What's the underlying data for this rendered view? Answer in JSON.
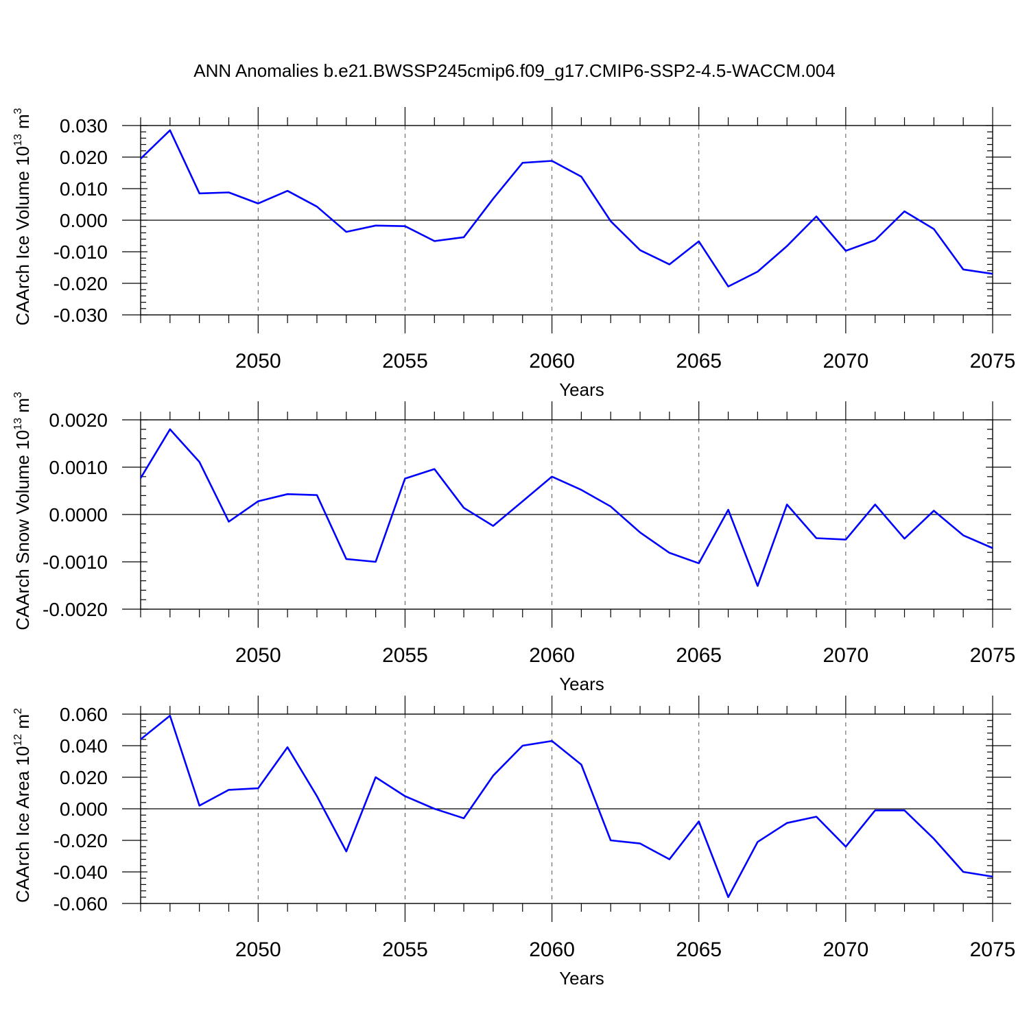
{
  "title": "ANN Anomalies b.e21.BWSSP245cmip6.f09_g17.CMIP6-SSP2-4.5-WACCM.004",
  "line_color": "#0000ff",
  "chart_data": [
    {
      "type": "line",
      "ylabel": "CAArch Ice Volume 10",
      "ylabel_exp": "13",
      "ylabel_unit": " m",
      "ylabel_unit_exp": "3",
      "xlabel": "Years",
      "xlim": [
        2046,
        2075
      ],
      "ylim": [
        -0.03,
        0.03
      ],
      "xticks": [
        2050,
        2055,
        2060,
        2065,
        2070,
        2075
      ],
      "yticks": [
        -0.03,
        -0.02,
        -0.01,
        0.0,
        0.01,
        0.02,
        0.03
      ],
      "ytick_labels": [
        "-0.030",
        "-0.020",
        "-0.010",
        "0.000",
        "0.010",
        "0.020",
        "0.030"
      ],
      "grid_x": true,
      "x": [
        2046,
        2047,
        2048,
        2049,
        2050,
        2051,
        2052,
        2053,
        2054,
        2055,
        2056,
        2057,
        2058,
        2059,
        2060,
        2061,
        2062,
        2063,
        2064,
        2065,
        2066,
        2067,
        2068,
        2069,
        2070,
        2071,
        2072,
        2073,
        2074,
        2075
      ],
      "y": [
        0.0195,
        0.0285,
        0.0085,
        0.0088,
        0.0053,
        0.0093,
        0.0043,
        -0.0037,
        -0.0017,
        -0.0019,
        -0.0066,
        -0.0054,
        0.0068,
        0.0182,
        0.0188,
        0.0138,
        -0.0003,
        -0.0095,
        -0.014,
        -0.0067,
        -0.021,
        -0.0163,
        -0.0082,
        0.0012,
        -0.0097,
        -0.0063,
        0.0028,
        -0.0028,
        -0.0156,
        -0.017
      ]
    },
    {
      "type": "line",
      "ylabel": "CAArch Snow Volume 10",
      "ylabel_exp": "13",
      "ylabel_unit": " m",
      "ylabel_unit_exp": "3",
      "xlabel": "Years",
      "xlim": [
        2046,
        2075
      ],
      "ylim": [
        -0.002,
        0.002
      ],
      "xticks": [
        2050,
        2055,
        2060,
        2065,
        2070,
        2075
      ],
      "yticks": [
        -0.002,
        -0.001,
        0.0,
        0.001,
        0.002
      ],
      "ytick_labels": [
        "-0.0020",
        "-0.0010",
        "0.0000",
        "0.0010",
        "0.0020"
      ],
      "grid_x": true,
      "x": [
        2046,
        2047,
        2048,
        2049,
        2050,
        2051,
        2052,
        2053,
        2054,
        2055,
        2056,
        2057,
        2058,
        2059,
        2060,
        2061,
        2062,
        2063,
        2064,
        2065,
        2066,
        2067,
        2068,
        2069,
        2070,
        2071,
        2072,
        2073,
        2074,
        2075
      ],
      "y": [
        0.00077,
        0.0018,
        0.00111,
        -0.00015,
        0.00028,
        0.00043,
        0.00041,
        -0.00094,
        -0.001,
        0.00076,
        0.00096,
        0.00014,
        -0.00024,
        0.00028,
        0.0008,
        0.00052,
        0.00017,
        -0.00038,
        -0.00081,
        -0.00103,
        0.0001,
        -0.00151,
        0.00021,
        -0.0005,
        -0.00053,
        0.00021,
        -0.00051,
        8e-05,
        -0.00044,
        -0.00071
      ]
    },
    {
      "type": "line",
      "ylabel": "CAArch Ice Area 10",
      "ylabel_exp": "12",
      "ylabel_unit": " m",
      "ylabel_unit_exp": "2",
      "xlabel": "Years",
      "xlim": [
        2046,
        2075
      ],
      "ylim": [
        -0.06,
        0.06
      ],
      "xticks": [
        2050,
        2055,
        2060,
        2065,
        2070,
        2075
      ],
      "yticks": [
        -0.06,
        -0.04,
        -0.02,
        0.0,
        0.02,
        0.04,
        0.06
      ],
      "ytick_labels": [
        "-0.060",
        "-0.040",
        "-0.020",
        "0.000",
        "0.020",
        "0.040",
        "0.060"
      ],
      "grid_x": true,
      "x": [
        2046,
        2047,
        2048,
        2049,
        2050,
        2051,
        2052,
        2053,
        2054,
        2055,
        2056,
        2057,
        2058,
        2059,
        2060,
        2061,
        2062,
        2063,
        2064,
        2065,
        2066,
        2067,
        2068,
        2069,
        2070,
        2071,
        2072,
        2073,
        2074,
        2075
      ],
      "y": [
        0.044,
        0.059,
        0.002,
        0.012,
        0.013,
        0.039,
        0.008,
        -0.027,
        0.02,
        0.008,
        0.0,
        -0.006,
        0.021,
        0.04,
        0.043,
        0.028,
        -0.02,
        -0.022,
        -0.032,
        -0.008,
        -0.056,
        -0.021,
        -0.009,
        -0.005,
        -0.024,
        -0.001,
        -0.001,
        -0.019,
        -0.04,
        -0.043
      ]
    }
  ]
}
